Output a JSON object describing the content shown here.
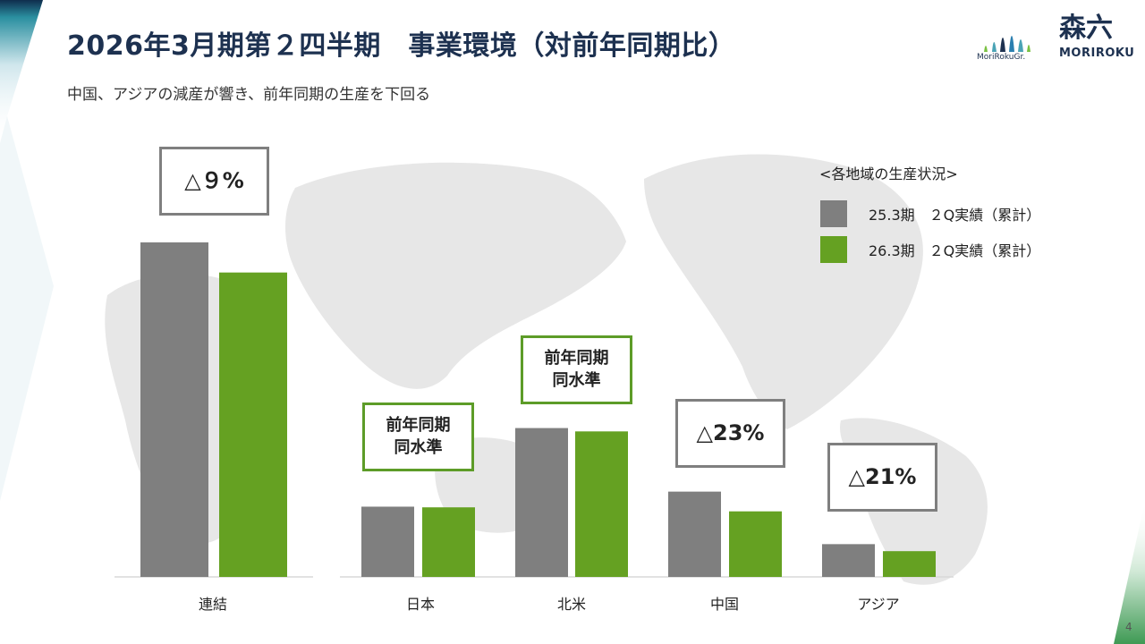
{
  "header": {
    "title": "2026年3月期第２四半期　事業環境（対前年同期比）",
    "subtitle": "中国、アジアの減産が響き、前年同期の生産を下回る"
  },
  "logos": {
    "group_text": "MoriRokuGr.",
    "brand_mark": "森六",
    "brand_text": "MORIROKU"
  },
  "colors": {
    "gray_series": "#7f7f7f",
    "green_series": "#65a122",
    "title": "#1d3150"
  },
  "legend": {
    "title": "<各地域の生産状況>",
    "items": [
      {
        "label": "25.3期　２Q実績（累計）",
        "color": "#7f7f7f"
      },
      {
        "label": "26.3期　２Q実績（累計）",
        "color": "#65a122"
      }
    ]
  },
  "callouts": [
    {
      "text": "△９%",
      "style": "gray"
    },
    {
      "text": "前年同期\n同水準",
      "style": "green"
    },
    {
      "text": "前年同期\n同水準",
      "style": "green"
    },
    {
      "text": "△23%",
      "style": "gray"
    },
    {
      "text": "△21%",
      "style": "gray"
    }
  ],
  "chart_data": [
    {
      "type": "bar",
      "categories": [
        "連結"
      ],
      "series": [
        {
          "name": "25.3期　２Q実績（累計）",
          "values": [
            100
          ]
        },
        {
          "name": "26.3期　２Q実績（累計）",
          "values": [
            91
          ]
        }
      ],
      "ylim": [
        0,
        100
      ],
      "grid": false
    },
    {
      "type": "bar",
      "categories": [
        "日本",
        "北米",
        "中国",
        "アジア"
      ],
      "series": [
        {
          "name": "25.3期　２Q実績（累計）",
          "values": [
            21,
            44.5,
            25.5,
            9.8
          ]
        },
        {
          "name": "26.3期　２Q実績（累計）",
          "values": [
            20.8,
            43.5,
            19.6,
            7.7
          ]
        }
      ],
      "ylim": [
        0,
        100
      ],
      "grid": false
    }
  ],
  "page_number": "4"
}
